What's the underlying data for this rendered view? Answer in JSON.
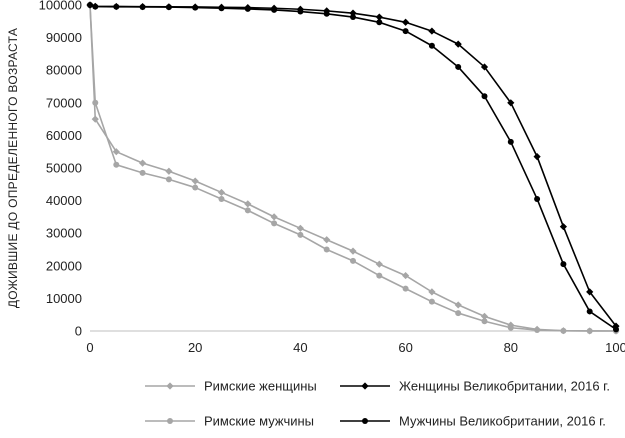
{
  "chart_data": {
    "type": "line",
    "ylabel": "ДОЖИВШИЕ ДО ОПРЕДЕЛЕННОГО ВОЗРАСТА",
    "xlabel": "",
    "xlim": [
      0,
      100
    ],
    "ylim": [
      0,
      100000
    ],
    "x_ticks": [
      0,
      20,
      40,
      60,
      80,
      100
    ],
    "y_ticks": [
      0,
      10000,
      20000,
      30000,
      40000,
      50000,
      60000,
      70000,
      80000,
      90000,
      100000
    ],
    "grid": false,
    "legend_position": "bottom",
    "series": [
      {
        "name": "Римские женщины",
        "color": "#a6a6a6",
        "marker": "diamond",
        "x": [
          0,
          1,
          5,
          10,
          15,
          20,
          25,
          30,
          35,
          40,
          45,
          50,
          55,
          60,
          65,
          70,
          75,
          80,
          85,
          90,
          95,
          100
        ],
        "y": [
          100000,
          65000,
          55000,
          51500,
          49000,
          46000,
          42500,
          39000,
          35000,
          31500,
          28000,
          24500,
          20500,
          17000,
          12000,
          8000,
          4500,
          1800,
          500,
          100,
          20,
          0
        ]
      },
      {
        "name": "Женщины Великобритании, 2016 г.",
        "color": "#000000",
        "marker": "diamond",
        "x": [
          0,
          1,
          5,
          10,
          15,
          20,
          25,
          30,
          35,
          40,
          45,
          50,
          55,
          60,
          65,
          70,
          75,
          80,
          85,
          90,
          95,
          100
        ],
        "y": [
          100000,
          99600,
          99550,
          99500,
          99450,
          99400,
          99300,
          99200,
          99000,
          98700,
          98200,
          97500,
          96300,
          94700,
          92000,
          88000,
          81000,
          70000,
          53500,
          32000,
          12000,
          1500
        ]
      },
      {
        "name": "Римские мужчины",
        "color": "#a6a6a6",
        "marker": "circle",
        "x": [
          0,
          1,
          5,
          10,
          15,
          20,
          25,
          30,
          35,
          40,
          45,
          50,
          55,
          60,
          65,
          70,
          75,
          80,
          85,
          90,
          95,
          100
        ],
        "y": [
          100000,
          70000,
          51000,
          48500,
          46500,
          44000,
          40500,
          37000,
          33000,
          29500,
          25000,
          21500,
          17000,
          13000,
          9000,
          5500,
          3000,
          1000,
          300,
          50,
          10,
          0
        ]
      },
      {
        "name": "Мужчины Великобритании, 2016 г.",
        "color": "#000000",
        "marker": "circle",
        "x": [
          0,
          1,
          5,
          10,
          15,
          20,
          25,
          30,
          35,
          40,
          45,
          50,
          55,
          60,
          65,
          70,
          75,
          80,
          85,
          90,
          95,
          100
        ],
        "y": [
          100000,
          99500,
          99450,
          99400,
          99350,
          99200,
          99000,
          98800,
          98500,
          98000,
          97300,
          96300,
          94700,
          92000,
          87500,
          81000,
          72000,
          58000,
          40500,
          20500,
          6000,
          500
        ]
      }
    ],
    "legend": [
      {
        "series": 0,
        "label": "Римские женщины"
      },
      {
        "series": 1,
        "label": "Женщины Великобритании, 2016 г."
      },
      {
        "series": 2,
        "label": "Римские мужчины"
      },
      {
        "series": 3,
        "label": "Мужчины Великобритании, 2016 г."
      }
    ]
  }
}
